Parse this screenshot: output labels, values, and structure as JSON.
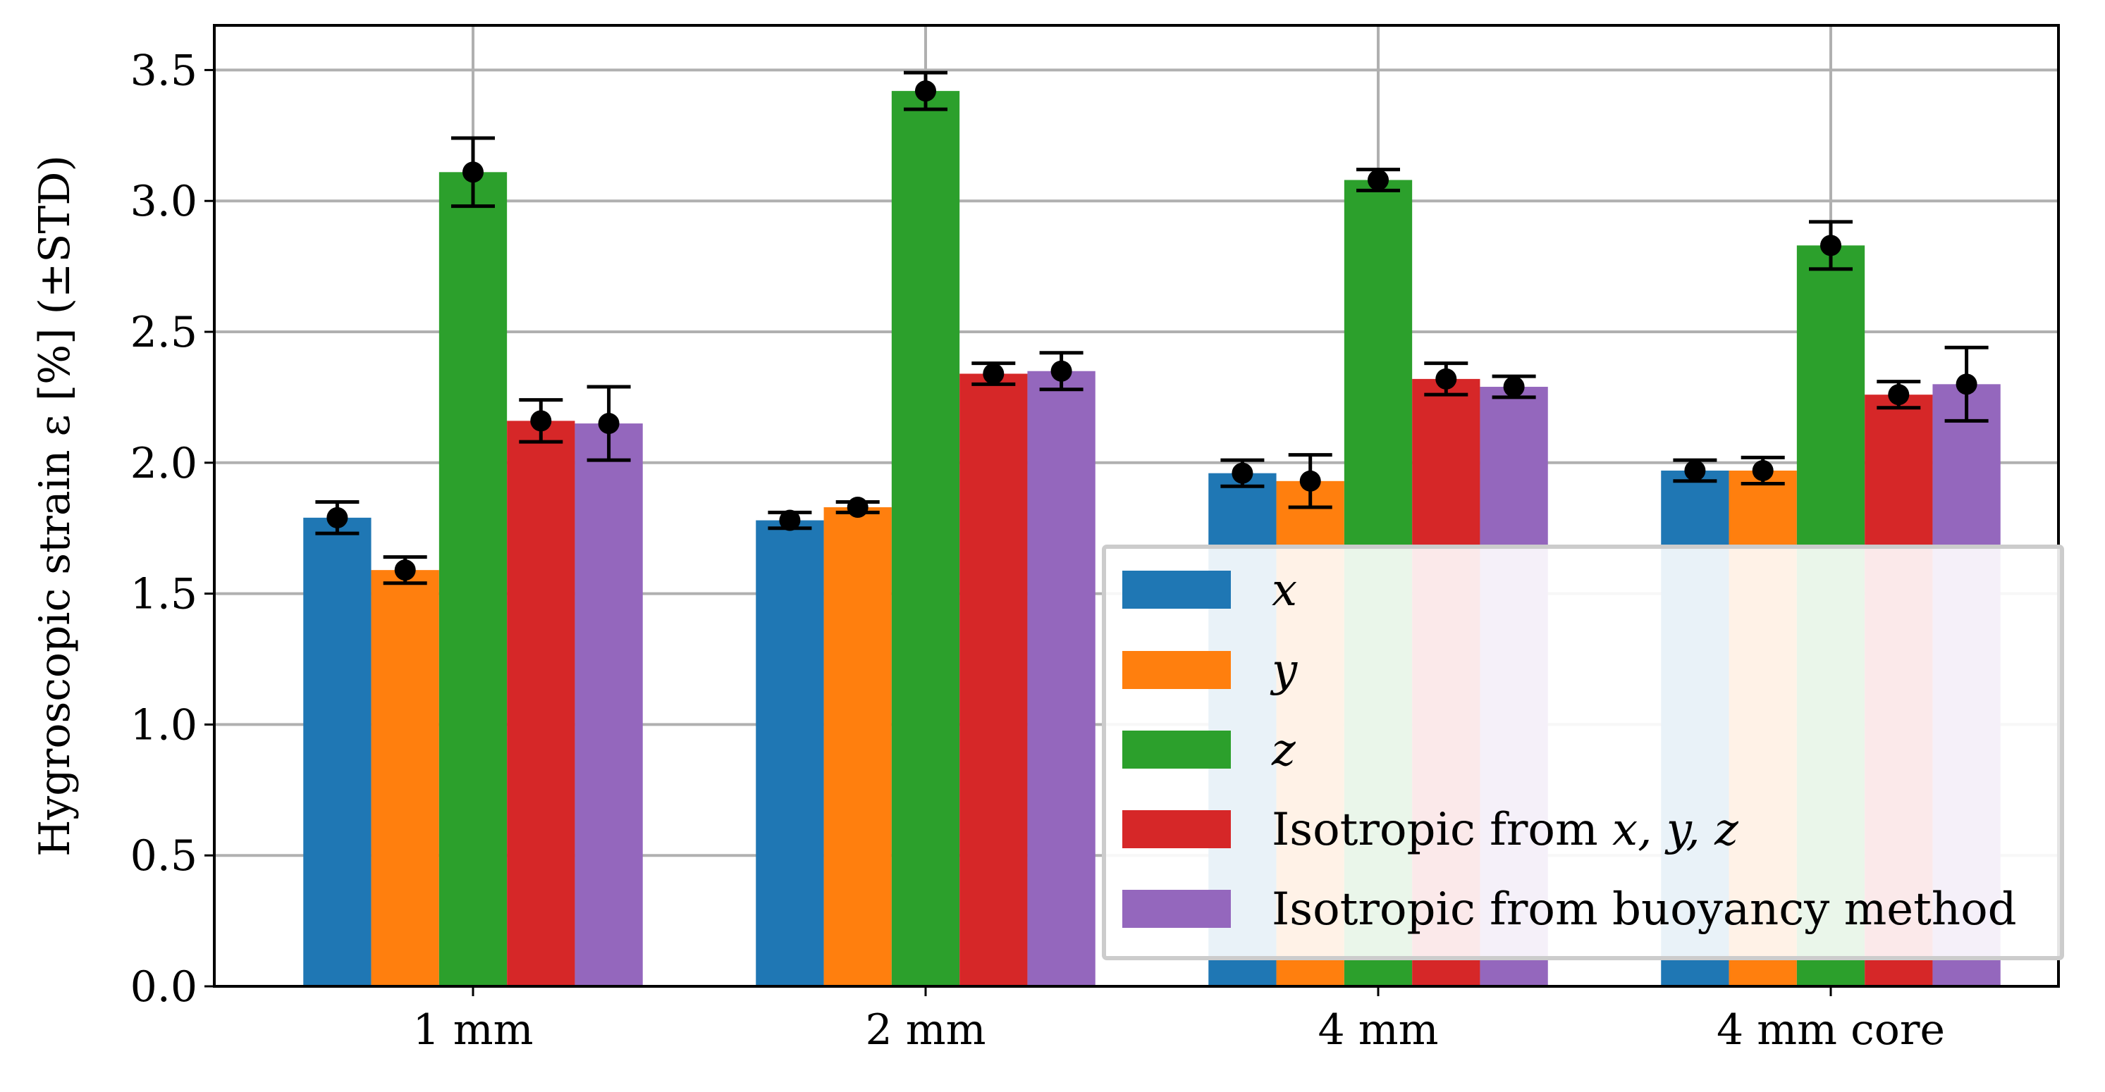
{
  "chart_data": {
    "type": "bar",
    "title": "",
    "xlabel": "",
    "ylabel": "Hygroscopic strain ε [%] (±STD)",
    "ylim": [
      0,
      3.65
    ],
    "yticks": [
      "0.0",
      "0.5",
      "1.0",
      "1.5",
      "2.0",
      "2.5",
      "3.0",
      "3.5"
    ],
    "grid": true,
    "legend_position": "lower-right",
    "categories": [
      "1 mm",
      "2 mm",
      "4 mm",
      "4 mm core"
    ],
    "series": [
      {
        "name": "x",
        "color": "#1f77b4",
        "values": [
          1.79,
          1.78,
          1.96,
          1.97
        ],
        "errors": [
          0.06,
          0.03,
          0.05,
          0.04
        ]
      },
      {
        "name": "y",
        "color": "#ff7f0e",
        "values": [
          1.59,
          1.83,
          1.93,
          1.97
        ],
        "errors": [
          0.05,
          0.02,
          0.1,
          0.05
        ]
      },
      {
        "name": "z",
        "color": "#2ca02c",
        "values": [
          3.11,
          3.42,
          3.08,
          2.83
        ],
        "errors": [
          0.13,
          0.07,
          0.04,
          0.09
        ]
      },
      {
        "name": "Isotropic from x, y, z",
        "color": "#d62728",
        "values": [
          2.16,
          2.34,
          2.32,
          2.26
        ],
        "errors": [
          0.08,
          0.04,
          0.06,
          0.05
        ]
      },
      {
        "name": "Isotropic from buoyancy method",
        "color": "#9467bd",
        "values": [
          2.15,
          2.35,
          2.29,
          2.3
        ],
        "errors": [
          0.14,
          0.07,
          0.04,
          0.14
        ]
      }
    ],
    "legend": {
      "items": [
        {
          "prefix": "",
          "italic": "x",
          "suffix": ""
        },
        {
          "prefix": "",
          "italic": "y",
          "suffix": ""
        },
        {
          "prefix": "",
          "italic": "z",
          "suffix": ""
        },
        {
          "prefix": "Isotropic from ",
          "italic": "x, y, z",
          "suffix": ""
        },
        {
          "prefix": "Isotropic from buoyancy method",
          "italic": "",
          "suffix": ""
        }
      ]
    }
  }
}
